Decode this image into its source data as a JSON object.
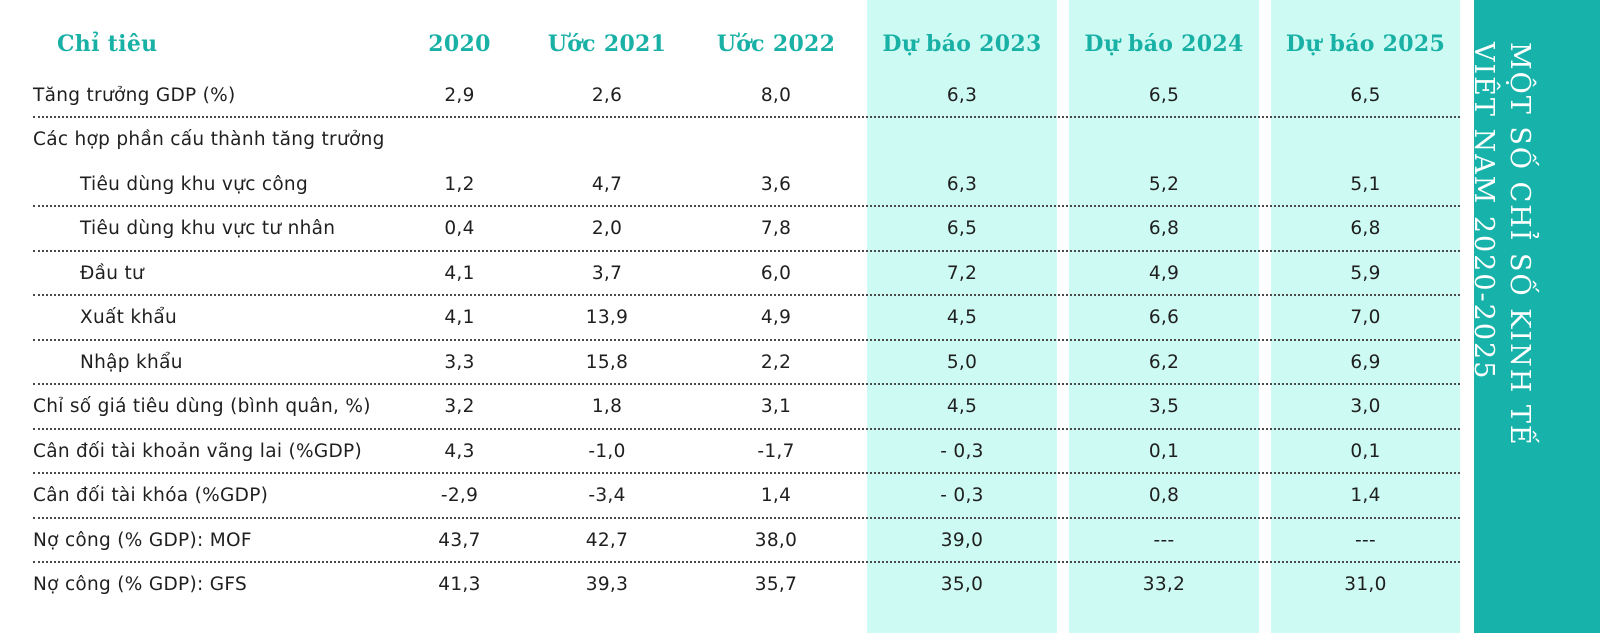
{
  "sidebar": {
    "line1": "MỘT SỐ CHỈ SỐ KINH TẾ",
    "line2": "VIỆT NAM 2020-2025"
  },
  "colors": {
    "accent": "#17b3aa",
    "highlight": "#cdfaf2"
  },
  "table": {
    "headers": [
      "Chỉ tiêu",
      "2020",
      "Ước 2021",
      "Ước 2022",
      "Dự báo 2023",
      "Dự báo 2024",
      "Dự báo 2025"
    ],
    "rows": [
      {
        "label": "Tăng trưởng GDP (%)",
        "values": [
          "2,9",
          "2,6",
          "8,0",
          "6,3",
          "6,5",
          "6,5"
        ]
      },
      {
        "label": "Các hợp phần cấu thành tăng trưởng",
        "values": [
          "",
          "",
          "",
          "",
          "",
          ""
        ]
      },
      {
        "label": "Tiêu dùng khu vực công",
        "values": [
          "1,2",
          "4,7",
          "3,6",
          "6,3",
          "5,2",
          "5,1"
        ]
      },
      {
        "label": "Tiêu dùng khu vực tư nhân",
        "values": [
          "0,4",
          "2,0",
          "7,8",
          "6,5",
          "6,8",
          "6,8"
        ]
      },
      {
        "label": "Đầu tư",
        "values": [
          "4,1",
          "3,7",
          "6,0",
          "7,2",
          "4,9",
          "5,9"
        ]
      },
      {
        "label": "Xuất khẩu",
        "values": [
          "4,1",
          "13,9",
          "4,9",
          "4,5",
          "6,6",
          "7,0"
        ]
      },
      {
        "label": "Nhập khẩu",
        "values": [
          "3,3",
          "15,8",
          "2,2",
          "5,0",
          "6,2",
          "6,9"
        ]
      },
      {
        "label": "Chỉ số giá tiêu dùng (bình quân, %)",
        "values": [
          "3,2",
          "1,8",
          "3,1",
          "4,5",
          "3,5",
          "3,0"
        ]
      },
      {
        "label": "Cân đối tài khoản vãng lai (%GDP)",
        "values": [
          "4,3",
          "-1,0",
          "-1,7",
          "- 0,3",
          "0,1",
          "0,1"
        ]
      },
      {
        "label": "Cân đối tài khóa (%GDP)",
        "values": [
          "-2,9",
          "-3,4",
          "1,4",
          "- 0,3",
          "0,8",
          "1,4"
        ]
      },
      {
        "label": "Nợ công (% GDP): MOF",
        "values": [
          "43,7",
          "42,7",
          "38,0",
          "39,0",
          "---",
          "---"
        ]
      },
      {
        "label": "Nợ công (% GDP): GFS",
        "values": [
          "41,3",
          "39,3",
          "35,7",
          "35,0",
          "33,2",
          "31,0"
        ]
      }
    ]
  }
}
